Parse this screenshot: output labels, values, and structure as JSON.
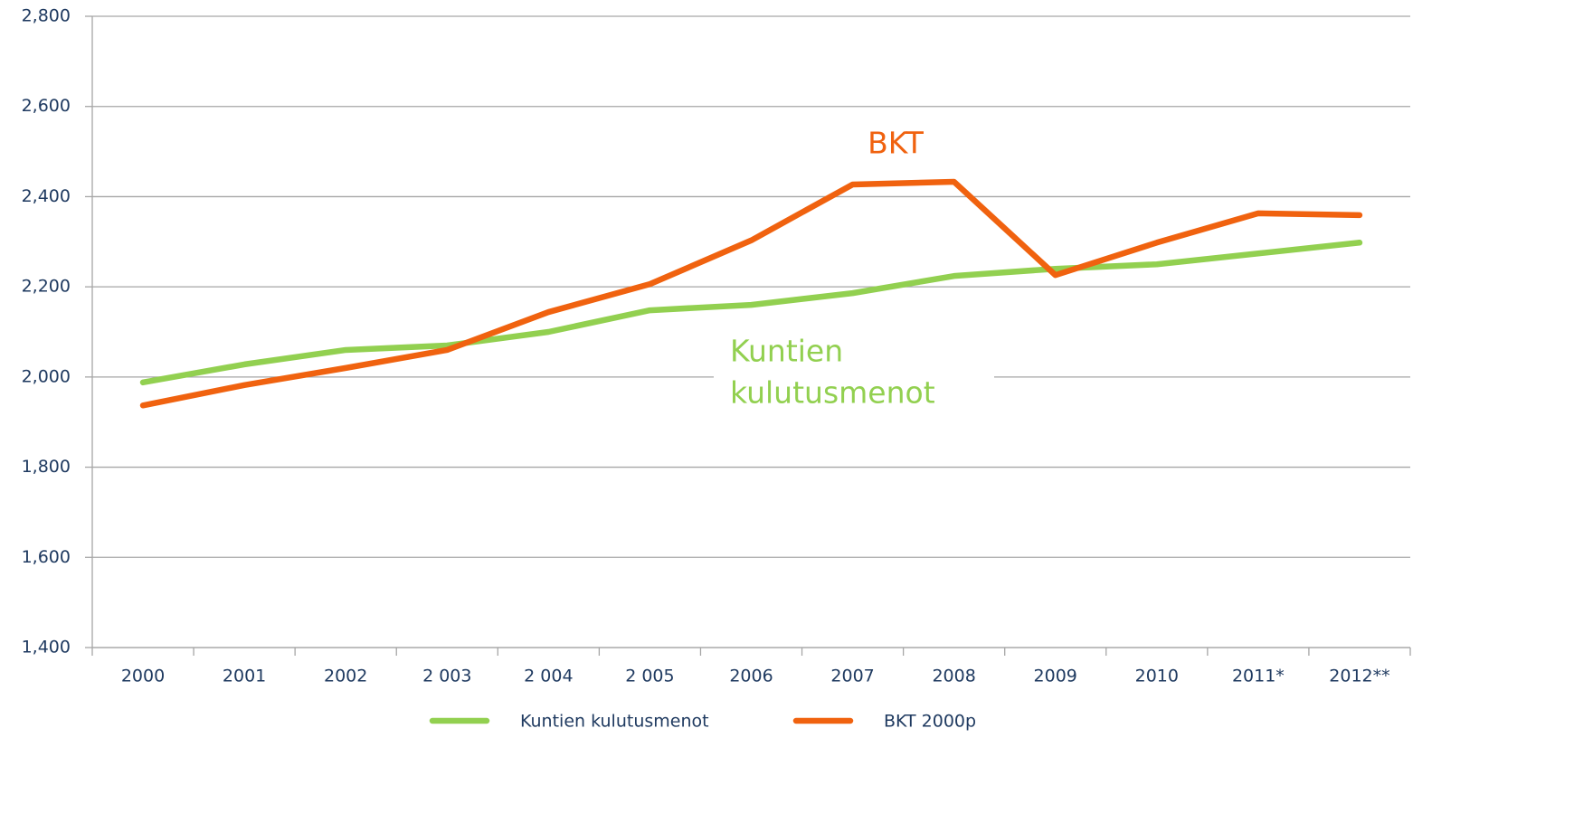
{
  "chart_data": {
    "type": "line",
    "categories": [
      "2000",
      "2001",
      "2002",
      "2 003",
      "2 004",
      "2 005",
      "2006",
      "2007",
      "2008",
      "2009",
      "2010",
      "2011*",
      "2012**"
    ],
    "series": [
      {
        "name": "Kuntien kulutusmenot",
        "color": "#92d050",
        "values": [
          1988,
          2028,
          2060,
          2070,
          2100,
          2148,
          2160,
          2186,
          2224,
          2240,
          2250,
          2274,
          2298
        ]
      },
      {
        "name": "BKT 2000p",
        "color": "#f0620f",
        "values": [
          1937,
          1982,
          2020,
          2060,
          2144,
          2206,
          2303,
          2427,
          2433,
          2226,
          2298,
          2363,
          2359
        ]
      }
    ],
    "ylim": [
      1400,
      2800
    ],
    "yticks": [
      {
        "value": 1400,
        "label": "1,400"
      },
      {
        "value": 1600,
        "label": "1,600"
      },
      {
        "value": 1800,
        "label": "1,800"
      },
      {
        "value": 2000,
        "label": "2,000"
      },
      {
        "value": 2200,
        "label": "2,200"
      },
      {
        "value": 2400,
        "label": "2,400"
      },
      {
        "value": 2600,
        "label": "2,600"
      },
      {
        "value": 2800,
        "label": "2,800"
      }
    ],
    "grid": true,
    "legend": "bottom",
    "annotations": [
      {
        "lines": [
          "BKT"
        ],
        "color": "#f0620f"
      },
      {
        "lines": [
          "Kuntien",
          "kulutusmenot"
        ],
        "color": "#92d050"
      }
    ]
  }
}
